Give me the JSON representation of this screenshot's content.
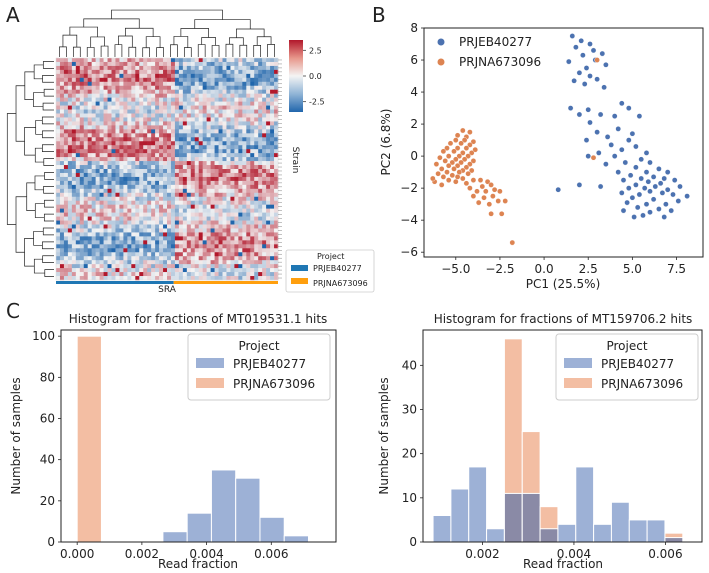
{
  "panel_labels": {
    "a": "A",
    "b": "B",
    "c": "C"
  },
  "colors": {
    "blue": "#4c72b0",
    "orange": "#dd8452",
    "sra_blue": "#1f77b4",
    "sra_orange": "#ff9f0e",
    "hist_blue": "#9db1d6",
    "hist_orange": "#f3bea3",
    "overlap": "#8a8aa6"
  },
  "chart_data": [
    {
      "id": "A",
      "type": "heatmap",
      "title": "",
      "colorbar": {
        "ticks": [
          2.5,
          0.0,
          -2.5
        ],
        "tick_labels": [
          "2.5",
          "0.0",
          "-2.5"
        ],
        "range": [
          -3.5,
          3.5
        ]
      },
      "ylabel": "Strain",
      "xlabel": "SRA",
      "legend": {
        "title": "Project",
        "entries": [
          "PRJEB40277",
          "PRJNA673096"
        ]
      },
      "groups": [
        {
          "name": "PRJEB40277",
          "start": 0,
          "end": 0.53
        },
        {
          "name": "PRJNA673096",
          "start": 0.53,
          "end": 1.0
        }
      ]
    },
    {
      "id": "B",
      "type": "scatter",
      "xlabel": "PC1 (25.5%)",
      "ylabel": "PC2 (6.8%)",
      "xlim": [
        -6.8,
        9.0
      ],
      "ylim": [
        -6.3,
        8.0
      ],
      "xticks": [
        -5.0,
        -2.5,
        0.0,
        2.5,
        5.0,
        7.5
      ],
      "xtick_labels": [
        "−5.0",
        "−2.5",
        "0.0",
        "2.5",
        "5.0",
        "7.5"
      ],
      "yticks": [
        -6,
        -4,
        -2,
        0,
        2,
        4,
        6,
        8
      ],
      "ytick_labels": [
        "−6",
        "−4",
        "−2",
        "0",
        "2",
        "4",
        "6",
        "8"
      ],
      "legend_position": "top-left",
      "series": [
        {
          "name": "PRJEB40277",
          "color": "#4c72b0",
          "points": [
            [
              1.6,
              7.5
            ],
            [
              2.1,
              7.2
            ],
            [
              2.6,
              7.0
            ],
            [
              1.8,
              6.8
            ],
            [
              2.8,
              6.6
            ],
            [
              3.3,
              6.4
            ],
            [
              2.2,
              6.3
            ],
            [
              2.9,
              6.0
            ],
            [
              1.4,
              5.9
            ],
            [
              3.5,
              5.7
            ],
            [
              2.4,
              5.5
            ],
            [
              2.0,
              5.2
            ],
            [
              2.6,
              5.0
            ],
            [
              3.0,
              4.8
            ],
            [
              1.7,
              4.7
            ],
            [
              2.3,
              4.5
            ],
            [
              3.4,
              4.3
            ],
            [
              1.5,
              3.0
            ],
            [
              2.5,
              2.9
            ],
            [
              4.4,
              3.3
            ],
            [
              4.8,
              3.0
            ],
            [
              2.0,
              2.6
            ],
            [
              3.2,
              2.6
            ],
            [
              4.0,
              2.5
            ],
            [
              5.4,
              2.5
            ],
            [
              2.6,
              2.1
            ],
            [
              4.2,
              1.7
            ],
            [
              3.0,
              1.5
            ],
            [
              5.0,
              1.4
            ],
            [
              3.6,
              1.2
            ],
            [
              2.4,
              1.0
            ],
            [
              4.8,
              1.0
            ],
            [
              3.8,
              0.7
            ],
            [
              5.2,
              0.6
            ],
            [
              4.4,
              0.4
            ],
            [
              3.1,
              0.2
            ],
            [
              5.8,
              0.2
            ],
            [
              2.5,
              0.0
            ],
            [
              4.0,
              0.0
            ],
            [
              5.5,
              -0.2
            ],
            [
              4.6,
              -0.4
            ],
            [
              6.0,
              -0.4
            ],
            [
              3.5,
              -0.5
            ],
            [
              5.2,
              -0.7
            ],
            [
              6.5,
              -0.8
            ],
            [
              4.2,
              -1.0
            ],
            [
              5.8,
              -1.0
            ],
            [
              7.0,
              -1.0
            ],
            [
              4.9,
              -1.2
            ],
            [
              6.2,
              -1.3
            ],
            [
              5.5,
              -1.4
            ],
            [
              6.8,
              -1.4
            ],
            [
              4.5,
              -1.5
            ],
            [
              7.4,
              -1.5
            ],
            [
              5.9,
              -1.6
            ],
            [
              6.6,
              -1.7
            ],
            [
              5.2,
              -1.8
            ],
            [
              6.3,
              -1.9
            ],
            [
              7.7,
              -1.9
            ],
            [
              4.8,
              -2.0
            ],
            [
              5.7,
              -2.0
            ],
            [
              7.0,
              -2.1
            ],
            [
              0.8,
              -2.1
            ],
            [
              2.0,
              -1.8
            ],
            [
              3.2,
              -1.9
            ],
            [
              6.0,
              -2.2
            ],
            [
              4.4,
              -2.3
            ],
            [
              6.7,
              -2.3
            ],
            [
              5.4,
              -2.4
            ],
            [
              7.3,
              -2.4
            ],
            [
              8.1,
              -2.5
            ],
            [
              5.0,
              -2.6
            ],
            [
              6.2,
              -2.7
            ],
            [
              7.6,
              -2.8
            ],
            [
              4.7,
              -2.9
            ],
            [
              5.8,
              -3.0
            ],
            [
              6.9,
              -3.0
            ],
            [
              5.3,
              -3.2
            ],
            [
              6.5,
              -3.3
            ],
            [
              4.5,
              -3.4
            ],
            [
              7.2,
              -3.4
            ],
            [
              6.0,
              -3.5
            ],
            [
              5.6,
              -3.7
            ],
            [
              6.8,
              -3.8
            ],
            [
              5.1,
              -3.8
            ]
          ]
        },
        {
          "name": "PRJNA673096",
          "color": "#dd8452",
          "points": [
            [
              -4.6,
              1.6
            ],
            [
              -4.2,
              1.5
            ],
            [
              -4.9,
              1.3
            ],
            [
              -4.4,
              1.2
            ],
            [
              -5.0,
              1.0
            ],
            [
              -4.5,
              1.0
            ],
            [
              -4.0,
              0.9
            ],
            [
              -5.3,
              0.8
            ],
            [
              -4.7,
              0.8
            ],
            [
              -4.2,
              0.7
            ],
            [
              -5.5,
              0.5
            ],
            [
              -4.9,
              0.5
            ],
            [
              -4.4,
              0.5
            ],
            [
              -3.9,
              0.4
            ],
            [
              -5.7,
              0.3
            ],
            [
              -5.1,
              0.3
            ],
            [
              -4.6,
              0.2
            ],
            [
              -4.1,
              0.2
            ],
            [
              -5.4,
              0.0
            ],
            [
              -4.8,
              0.0
            ],
            [
              -4.3,
              0.0
            ],
            [
              -5.9,
              -0.1
            ],
            [
              -5.0,
              -0.2
            ],
            [
              -4.5,
              -0.2
            ],
            [
              -4.0,
              -0.3
            ],
            [
              -5.6,
              -0.3
            ],
            [
              -5.2,
              -0.4
            ],
            [
              -4.7,
              -0.4
            ],
            [
              -4.2,
              -0.5
            ],
            [
              -6.1,
              -0.5
            ],
            [
              -5.4,
              -0.6
            ],
            [
              -4.9,
              -0.6
            ],
            [
              -4.4,
              -0.7
            ],
            [
              -5.8,
              -0.8
            ],
            [
              -5.1,
              -0.8
            ],
            [
              -4.6,
              -0.9
            ],
            [
              -4.1,
              -0.9
            ],
            [
              -5.5,
              -1.0
            ],
            [
              -4.8,
              -1.0
            ],
            [
              -6.0,
              -1.1
            ],
            [
              -5.2,
              -1.2
            ],
            [
              -4.3,
              -1.1
            ],
            [
              -5.7,
              -1.3
            ],
            [
              -4.9,
              -1.3
            ],
            [
              -5.4,
              -1.5
            ],
            [
              -4.6,
              -1.4
            ],
            [
              -6.2,
              -1.6
            ],
            [
              -5.0,
              -1.6
            ],
            [
              -4.4,
              -1.7
            ],
            [
              -5.8,
              -1.8
            ],
            [
              -6.3,
              -1.4
            ],
            [
              -4.0,
              -1.5
            ],
            [
              -3.6,
              -1.5
            ],
            [
              -3.2,
              -1.6
            ],
            [
              -4.2,
              -2.0
            ],
            [
              -3.5,
              -1.9
            ],
            [
              -3.0,
              -1.8
            ],
            [
              -3.8,
              -2.2
            ],
            [
              -3.3,
              -2.2
            ],
            [
              -2.8,
              -2.1
            ],
            [
              -4.0,
              -2.5
            ],
            [
              -3.4,
              -2.6
            ],
            [
              -2.9,
              -2.5
            ],
            [
              -2.5,
              -2.2
            ],
            [
              -3.7,
              -2.9
            ],
            [
              -3.1,
              -3.0
            ],
            [
              -2.6,
              -2.8
            ],
            [
              -2.2,
              -2.8
            ],
            [
              -3.0,
              -3.6
            ],
            [
              -2.4,
              -3.6
            ],
            [
              -1.8,
              -5.4
            ],
            [
              3.0,
              6.0
            ],
            [
              2.8,
              -0.1
            ]
          ]
        }
      ]
    },
    {
      "id": "C-left",
      "type": "bar",
      "title": "Histogram for fractions of MT019531.1 hits",
      "xlabel": "Read fraction",
      "ylabel": "Number of samples",
      "xlim": [
        -0.0005,
        0.008
      ],
      "ylim": [
        0,
        103
      ],
      "xticks": [
        0.0,
        0.002,
        0.004,
        0.006
      ],
      "xtick_labels": [
        "0.000",
        "0.002",
        "0.004",
        "0.006"
      ],
      "yticks": [
        0,
        20,
        40,
        60,
        80,
        100
      ],
      "ytick_labels": [
        "0",
        "20",
        "40",
        "60",
        "80",
        "100"
      ],
      "legend": {
        "title": "Project",
        "entries": [
          "PRJEB40277",
          "PRJNA673096"
        ],
        "position": "top-right"
      },
      "series": [
        {
          "name": "PRJNA673096",
          "bins": [
            {
              "x0": 0.0,
              "x1": 0.00075,
              "count": 100
            }
          ]
        },
        {
          "name": "PRJEB40277",
          "bins": [
            {
              "x0": 0.00265,
              "x1": 0.0034,
              "count": 5
            },
            {
              "x0": 0.0034,
              "x1": 0.00415,
              "count": 14
            },
            {
              "x0": 0.00415,
              "x1": 0.0049,
              "count": 35
            },
            {
              "x0": 0.0049,
              "x1": 0.00565,
              "count": 31
            },
            {
              "x0": 0.00565,
              "x1": 0.0064,
              "count": 12
            },
            {
              "x0": 0.0064,
              "x1": 0.00715,
              "count": 3
            }
          ]
        }
      ]
    },
    {
      "id": "C-right",
      "type": "bar",
      "title": "Histogram for fractions of MT159706.2 hits",
      "xlabel": "Read fraction",
      "ylabel": "Number of samples",
      "xlim": [
        0.0007,
        0.0068
      ],
      "ylim": [
        0,
        48
      ],
      "xticks": [
        0.002,
        0.004,
        0.006
      ],
      "xtick_labels": [
        "0.002",
        "0.004",
        "0.006"
      ],
      "yticks": [
        0,
        10,
        20,
        30,
        40
      ],
      "ytick_labels": [
        "0",
        "10",
        "20",
        "30",
        "40"
      ],
      "legend": {
        "title": "Project",
        "entries": [
          "PRJEB40277",
          "PRJNA673096"
        ],
        "position": "top-right"
      },
      "bin_edges": [
        0.00092,
        0.00131,
        0.0017,
        0.00209,
        0.00248,
        0.00287,
        0.00326,
        0.00365,
        0.00404,
        0.00443,
        0.00482,
        0.00521,
        0.0056,
        0.00599,
        0.00638
      ],
      "series": [
        {
          "name": "PRJEB40277",
          "counts": [
            6,
            12,
            17,
            3,
            11,
            11,
            3,
            4,
            17,
            4,
            9,
            5,
            5,
            1
          ]
        },
        {
          "name": "PRJNA673096",
          "counts": [
            0,
            0,
            0,
            0,
            46,
            25,
            8,
            0,
            0,
            0,
            0,
            0,
            0,
            2
          ]
        }
      ]
    }
  ]
}
